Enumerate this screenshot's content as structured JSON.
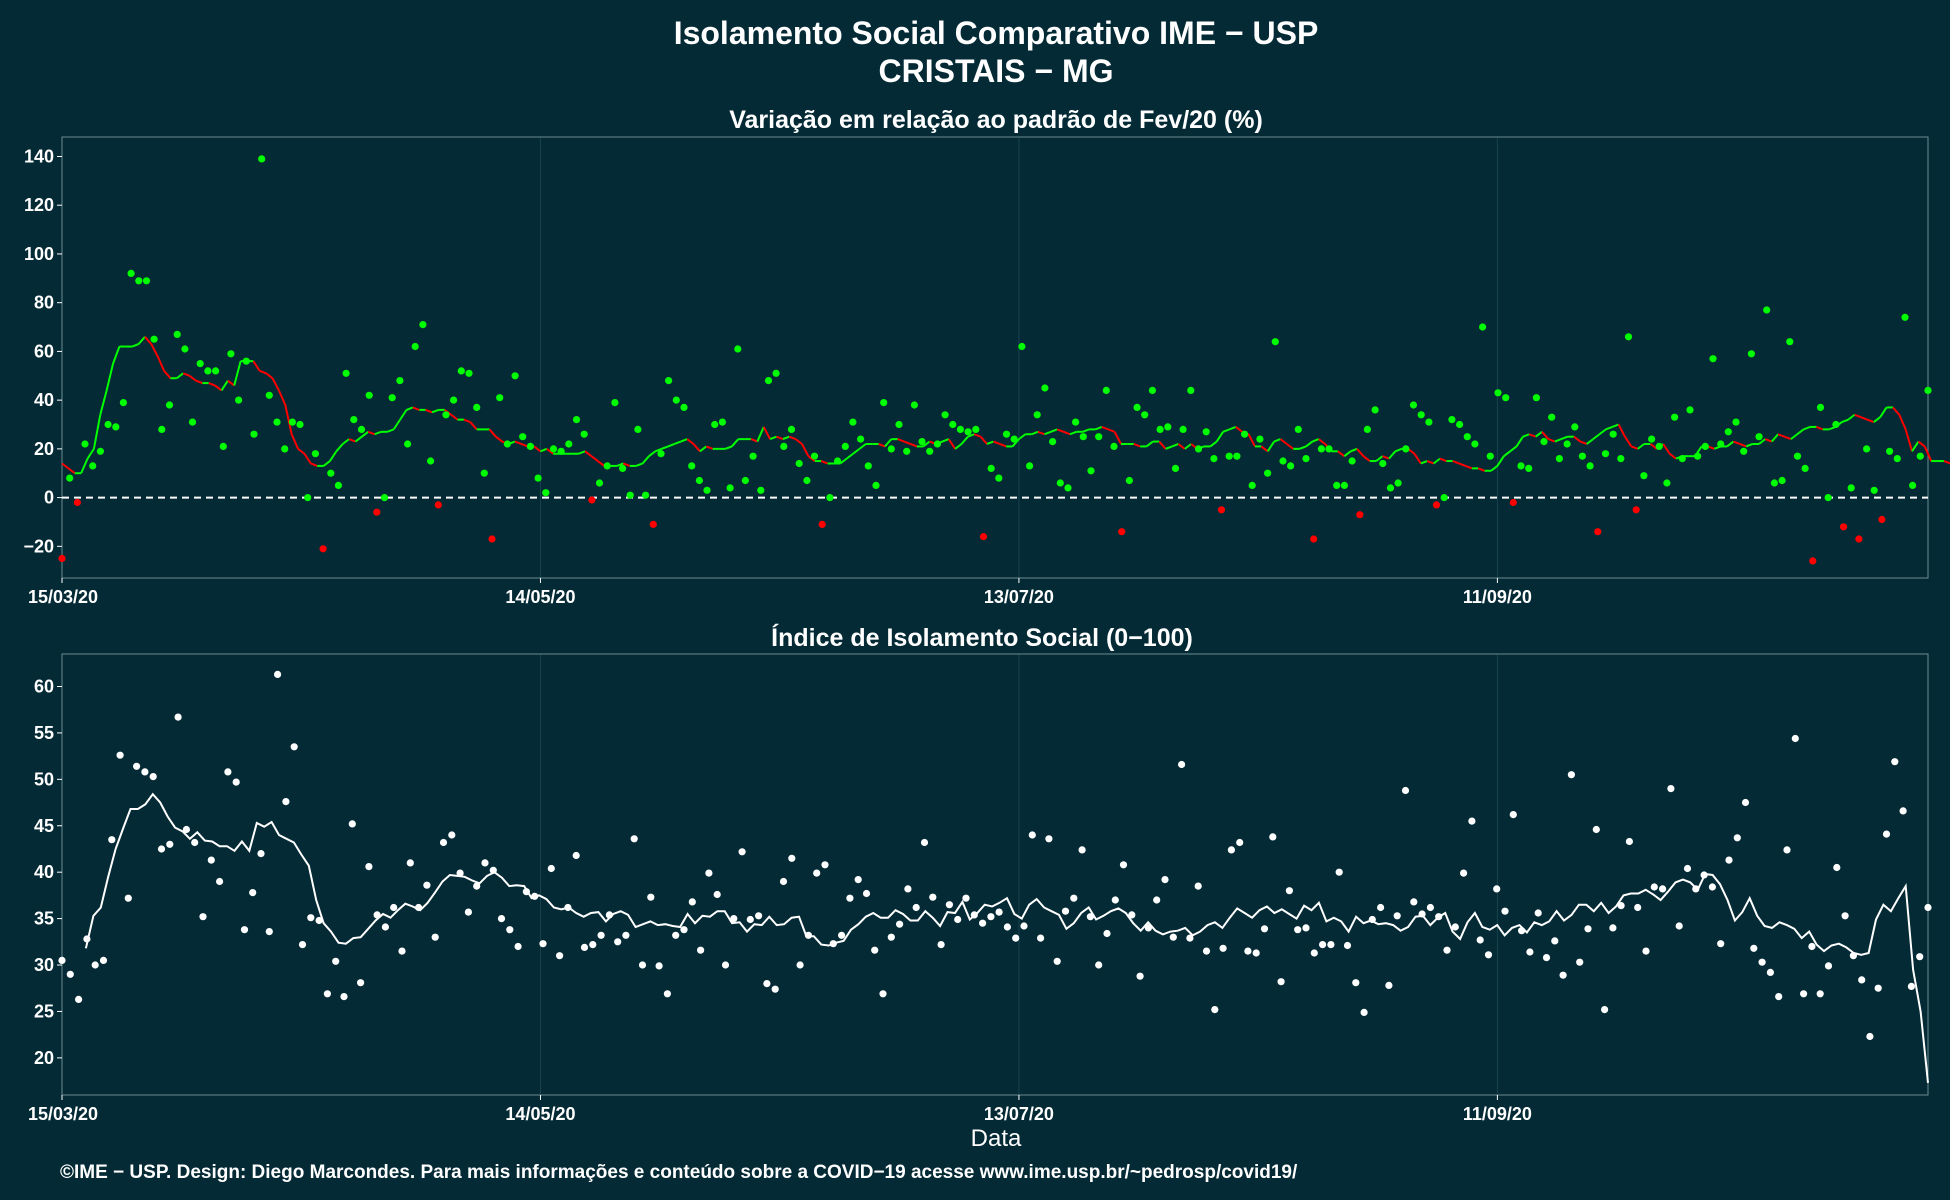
{
  "header": {
    "title_line1": "Isolamento Social Comparativo IME − USP",
    "title_line2": "CRISTAIS − MG"
  },
  "footer": {
    "credit": "©IME − USP. Design: Diego Marcondes. Para mais informações e conteúdo sobre a COVID−19 acesse www.ime.usp.br/~pedrosp/covid19/"
  },
  "colors": {
    "background": "#042a35",
    "grid": "#16434e",
    "axis": "#6c8a91",
    "positive_points": "#00ff00",
    "negative_points": "#ff0000",
    "index_points": "#ffffff",
    "text": "#ffffff"
  },
  "chart_data": [
    {
      "type": "scatter",
      "title": "Variação em relação ao padrão de Fev/20 (%)",
      "xlabel": "",
      "ylabel": "",
      "x_ticks": [
        "15/03/20",
        "14/05/20",
        "13/07/20",
        "11/09/20"
      ],
      "x_tick_days": [
        0,
        60,
        120,
        180
      ],
      "x_range_days": [
        0,
        234
      ],
      "ylim": [
        -33,
        148
      ],
      "y_ticks": [
        -20,
        0,
        20,
        40,
        60,
        80,
        100,
        120,
        140
      ],
      "reference_line_y": 0,
      "series": [
        {
          "kind": "points",
          "values": [
            -25,
            8,
            -2,
            22,
            13,
            19,
            30,
            29,
            39,
            92,
            89,
            89,
            65,
            28,
            38,
            67,
            61,
            31,
            55,
            52,
            52,
            21,
            59,
            40,
            56,
            26,
            139,
            42,
            31,
            20,
            31,
            30,
            0,
            18,
            -21,
            10,
            5,
            51,
            32,
            28,
            42,
            -6,
            0,
            41,
            48,
            22,
            62,
            71,
            15,
            -3,
            34,
            40,
            52,
            51,
            37,
            10,
            -17,
            41,
            22,
            50,
            25,
            21,
            8,
            2,
            20,
            19,
            22,
            32,
            26,
            -1,
            6,
            13,
            39,
            12,
            1,
            28,
            1,
            -11,
            18,
            48,
            40,
            37,
            13,
            7,
            3,
            30,
            31,
            4,
            61,
            7,
            17,
            3,
            48,
            51,
            21,
            28,
            14,
            7,
            17,
            -11,
            0,
            15,
            21,
            31,
            24,
            13,
            5,
            39,
            20,
            30,
            19,
            38,
            23,
            19,
            22,
            34,
            30,
            28,
            27,
            28,
            -16,
            12,
            8,
            26,
            24,
            62,
            13,
            34,
            45,
            23,
            6,
            4,
            31,
            25,
            11,
            25,
            44,
            21,
            -14,
            7,
            37,
            34,
            44,
            28,
            29,
            12,
            28,
            44,
            20,
            27,
            16,
            -5,
            17,
            17,
            26,
            5,
            24,
            10,
            64,
            15,
            13,
            28,
            16,
            -17,
            20,
            20,
            5,
            5,
            15,
            -7,
            28,
            36,
            14,
            4,
            6,
            20,
            38,
            34,
            31,
            -3,
            0,
            32,
            30,
            25,
            22,
            70,
            17,
            43,
            41,
            -2,
            13,
            12,
            41,
            23,
            33,
            16,
            22,
            29,
            17,
            13,
            -14,
            18,
            26,
            16,
            66,
            -5,
            9,
            24,
            21,
            6,
            33,
            16,
            36,
            17,
            21,
            57,
            22,
            27,
            31,
            19,
            59,
            25,
            77,
            6,
            7,
            64,
            17,
            12,
            -26,
            37,
            0,
            30,
            -12,
            4,
            -17,
            20,
            3,
            -9,
            19,
            16,
            74,
            5,
            17,
            44
          ],
          "x_start_day": 0
        },
        {
          "kind": "moving_average",
          "values": [
            14,
            12,
            10,
            10,
            16,
            20,
            34,
            44,
            55,
            62,
            62,
            62,
            63,
            66,
            63,
            58,
            52,
            49,
            49,
            51,
            50,
            48,
            47,
            47,
            46,
            44,
            48,
            46,
            56,
            56,
            56,
            52,
            51,
            49,
            44,
            38,
            26,
            20,
            18,
            14,
            13,
            13,
            15,
            19,
            22,
            24,
            23,
            25,
            27,
            26,
            27,
            27,
            28,
            32,
            36,
            37,
            36,
            36,
            35,
            36,
            36,
            34,
            32,
            32,
            31,
            28,
            28,
            28,
            25,
            23,
            22,
            23,
            22,
            21,
            21,
            19,
            20,
            18,
            18,
            18,
            18,
            18,
            19,
            17,
            15,
            13,
            13,
            13,
            14,
            13,
            13,
            14,
            17,
            19,
            20,
            21,
            22,
            23,
            24,
            22,
            19,
            21,
            20,
            20,
            20,
            21,
            24,
            24,
            24,
            23,
            29,
            24,
            25,
            24,
            25,
            24,
            22,
            17,
            15,
            15,
            14,
            14,
            14,
            16,
            18,
            20,
            22,
            22,
            22,
            21,
            24,
            24,
            23,
            22,
            21,
            21,
            23,
            22,
            23,
            24,
            20,
            22,
            25,
            26,
            25,
            22,
            23,
            22,
            21,
            21,
            24,
            26,
            26,
            27,
            26,
            27,
            28,
            27,
            26,
            27,
            27,
            28,
            28,
            29,
            28,
            27,
            22,
            22,
            22,
            21,
            21,
            23,
            23,
            20,
            21,
            22,
            20,
            22,
            20,
            21,
            21,
            23,
            27,
            28,
            29,
            27,
            26,
            21,
            21,
            19,
            23,
            24,
            22,
            20,
            20,
            21,
            23,
            24,
            22,
            19,
            19,
            17,
            19,
            20,
            17,
            15,
            15,
            17,
            16,
            19,
            20,
            20,
            18,
            14,
            15,
            14,
            16,
            15,
            15,
            14,
            13,
            12,
            12,
            11,
            11,
            13,
            17,
            19,
            21,
            25,
            26,
            25,
            27,
            24,
            23,
            24,
            25,
            25,
            23,
            22,
            24,
            26,
            28,
            29,
            30,
            25,
            21,
            20,
            22,
            22,
            20,
            22,
            18,
            16,
            17,
            17,
            17,
            21,
            21,
            20,
            21,
            21,
            23,
            22,
            21,
            22,
            22,
            24,
            23,
            26,
            25,
            24,
            26,
            28,
            29,
            29,
            28,
            28,
            29,
            31,
            32,
            34,
            33,
            32,
            31,
            33,
            37,
            37,
            34,
            28,
            19,
            23,
            21,
            15,
            15,
            15,
            14,
            14,
            18,
            16,
            15,
            15,
            12,
            11,
            12,
            11,
            9,
            8,
            7,
            7,
            8,
            14,
            24,
            22,
            25,
            30
          ],
          "x_start_day": 0,
          "note": "green when above 0 trend, red when decreasing"
        }
      ]
    },
    {
      "type": "scatter",
      "title": "Índice de Isolamento Social (0−100)",
      "xlabel": "Data",
      "ylabel": "",
      "x_ticks": [
        "15/03/20",
        "14/05/20",
        "13/07/20",
        "11/09/20"
      ],
      "x_tick_days": [
        0,
        60,
        120,
        180
      ],
      "x_range_days": [
        0,
        234
      ],
      "ylim": [
        16,
        63.5
      ],
      "y_ticks": [
        20,
        25,
        30,
        35,
        40,
        45,
        50,
        55,
        60
      ],
      "series": [
        {
          "kind": "points",
          "values": [
            30.5,
            29,
            26.3,
            32.8,
            30,
            30.5,
            43.5,
            52.6,
            37.2,
            51.4,
            50.8,
            50.3,
            42.5,
            43,
            56.7,
            44.6,
            43.2,
            35.2,
            41.3,
            39,
            50.8,
            49.7,
            33.8,
            37.8,
            42,
            33.6,
            61.3,
            47.6,
            53.5,
            32.2,
            35.1,
            34.8,
            26.9,
            30.4,
            26.6,
            45.2,
            28.1,
            40.6,
            35.4,
            34.1,
            36.2,
            31.5,
            41,
            36.2,
            38.6,
            33,
            43.2,
            44,
            39.9,
            35.7,
            38.5,
            41,
            40.2,
            35,
            33.8,
            32,
            37.9,
            37.4,
            32.3,
            40.4,
            31,
            36.2,
            41.8,
            31.9,
            32.2,
            33.2,
            35.4,
            32.5,
            33.2,
            43.6,
            30,
            37.3,
            29.9,
            26.9,
            33.2,
            33.8,
            36.8,
            31.6,
            39.9,
            37.6,
            30,
            35,
            42.2,
            34.9,
            35.3,
            28,
            27.4,
            39,
            41.5,
            30,
            33.2,
            39.9,
            40.8,
            32.3,
            33.2,
            37.2,
            39.2,
            37.7,
            31.6,
            26.9,
            33,
            34.4,
            38.2,
            36.2,
            43.2,
            37.3,
            32.2,
            36.5,
            34.9,
            37.2,
            35.4,
            34.5,
            35.2,
            35.7,
            34.1,
            32.9,
            34.2,
            44,
            32.9,
            43.6,
            30.4,
            35.8,
            37.2,
            42.4,
            35.2,
            30,
            33.4,
            37,
            40.8,
            35.4,
            28.8,
            34,
            37,
            39.2,
            33,
            51.6,
            32.9,
            38.5,
            31.5,
            25.2,
            31.8,
            42.4,
            43.2,
            31.5,
            31.3,
            33.9,
            43.8,
            28.2,
            38,
            33.8,
            34,
            31.3,
            32.2,
            32.2,
            40,
            32.1,
            28.1,
            24.9,
            34.9,
            36.2,
            27.8,
            35.3,
            48.8,
            36.8,
            35.5,
            36.2,
            35.2,
            31.6,
            34.1,
            39.9,
            45.5,
            32.7,
            31.1,
            38.2,
            35.8,
            46.2,
            33.7,
            31.4,
            35.6,
            30.8,
            32.6,
            28.9,
            50.5,
            30.3,
            33.9,
            44.6,
            25.2,
            34,
            36.4,
            43.3,
            36.2,
            31.5,
            38.4,
            38.2,
            49,
            34.2,
            40.4,
            38.2,
            39.7,
            38.4,
            32.3,
            41.3,
            43.7,
            47.5,
            31.8,
            30.3,
            29.2,
            26.6,
            42.4,
            54.4,
            26.9,
            32,
            26.9,
            29.9,
            40.5,
            35.3,
            31,
            28.4,
            22.3,
            27.5,
            44.1,
            51.9,
            46.6,
            27.7,
            30.9,
            36.2
          ],
          "x_start_day": 0
        },
        {
          "kind": "moving_average",
          "values": [
            31.8,
            35.3,
            36.2,
            39.5,
            42.5,
            44.7,
            46.8,
            46.8,
            47.3,
            48.4,
            47.5,
            46,
            44.8,
            44.4,
            43.6,
            44.3,
            43.4,
            43.3,
            42.8,
            42.8,
            42.3,
            43.3,
            42.3,
            45.3,
            44.9,
            45.4,
            44,
            43.6,
            43.2,
            41.9,
            40.7,
            37,
            34.5,
            33.6,
            32.4,
            32.3,
            32.9,
            33,
            33.9,
            34.8,
            35.5,
            35.1,
            35.9,
            36.6,
            36.3,
            35.9,
            36.7,
            37.8,
            39,
            39.7,
            39.6,
            39.5,
            39.1,
            38.8,
            39.6,
            40,
            39.4,
            38.5,
            38.6,
            38.5,
            37.2,
            37.5,
            37.1,
            36.2,
            36,
            36.2,
            35.6,
            35.2,
            35.6,
            35.7,
            34.7,
            35.5,
            35.8,
            35.4,
            34.1,
            34.4,
            34.7,
            34.3,
            34.4,
            34.2,
            34.1,
            35.5,
            34.5,
            35.3,
            35.2,
            35.8,
            35.8,
            34.5,
            34.6,
            33.6,
            34.4,
            34.3,
            35.2,
            34.3,
            34.4,
            35.1,
            35.2,
            33.1,
            33.1,
            32.2,
            32.1,
            32.4,
            32.6,
            33.8,
            34.4,
            35.2,
            35.6,
            35.1,
            35.1,
            35.9,
            35.5,
            34.8,
            34.8,
            35.8,
            35.1,
            34.2,
            35.7,
            35.6,
            36.8,
            34.9,
            35.6,
            36.5,
            36.3,
            36.7,
            37.2,
            35.5,
            35,
            36.5,
            37.1,
            36.2,
            35.8,
            35.4,
            33.9,
            34.5,
            35.6,
            36.2,
            34.9,
            35.3,
            35.8,
            36.1,
            35.6,
            34.5,
            33.7,
            34.6,
            33.7,
            33.3,
            33.6,
            33.7,
            34,
            33.2,
            33.6,
            34.3,
            34.6,
            34,
            35.1,
            36.1,
            35.6,
            35.1,
            35.9,
            36.3,
            35.6,
            36,
            35.5,
            35,
            36.4,
            35.9,
            36.7,
            34.7,
            35.1,
            34.7,
            33.6,
            35.2,
            34.5,
            34.8,
            34.4,
            34.5,
            34.3,
            33.7,
            34.1,
            35.2,
            35.3,
            34.3,
            35.1,
            35.6,
            33.6,
            32.8,
            34.6,
            35.6,
            34.1,
            33.8,
            34.3,
            33.2,
            34,
            34.3,
            33.5,
            34.6,
            34.3,
            34.7,
            35.8,
            34.8,
            35.4,
            36.5,
            36.5,
            35.8,
            36.7,
            35.6,
            36.3,
            37.5,
            37.7,
            37.7,
            38.1,
            37.6,
            37,
            37.9,
            38.9,
            39.2,
            38.9,
            38.1,
            39.8,
            39.7,
            38.7,
            37,
            34.8,
            35.7,
            37.2,
            35.3,
            34.2,
            34,
            34.6,
            34.3,
            33.9,
            32.9,
            33.6,
            32.2,
            31.5,
            32.1,
            32.3,
            31.9,
            31.3,
            31.1,
            31.3,
            34.9,
            36.5,
            35.8,
            37.2,
            38.5,
            29.5,
            25,
            17.3
          ],
          "x_start_day": 3
        }
      ]
    }
  ]
}
